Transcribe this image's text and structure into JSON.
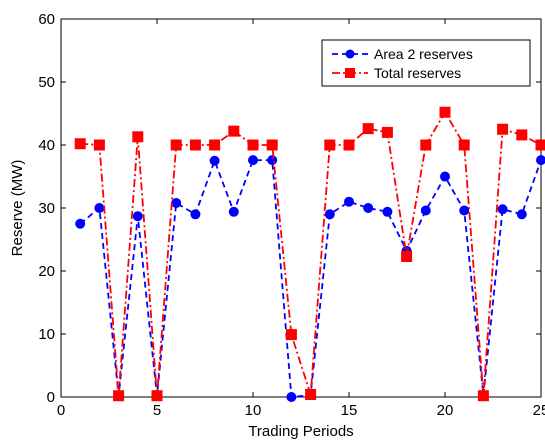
{
  "chart_data": {
    "type": "line",
    "title": "",
    "xlabel": "Trading Periods",
    "ylabel": "Reserve (MW)",
    "xlim": [
      0,
      25
    ],
    "ylim": [
      0,
      60
    ],
    "x_ticks": [
      0,
      5,
      10,
      15,
      20,
      25
    ],
    "y_ticks": [
      0,
      10,
      20,
      30,
      40,
      50,
      60
    ],
    "grid": false,
    "legend_position": "top-right",
    "x": [
      1,
      2,
      3,
      4,
      5,
      6,
      7,
      8,
      9,
      10,
      11,
      12,
      13,
      14,
      15,
      16,
      17,
      18,
      19,
      20,
      21,
      22,
      23,
      24,
      25
    ],
    "series": [
      {
        "name": "Area 2 reserves",
        "color": "#0000ff",
        "marker": "circle",
        "line_style": "dashed",
        "values": [
          27.5,
          30.0,
          0.2,
          28.7,
          0.2,
          30.8,
          29.0,
          37.5,
          29.4,
          37.6,
          37.6,
          0.0,
          0.3,
          29.0,
          31.0,
          30.0,
          29.4,
          23.2,
          29.6,
          35.0,
          29.6,
          0.3,
          29.8,
          29.0,
          37.6
        ]
      },
      {
        "name": "Total reserves",
        "color": "#ff0000",
        "marker": "square",
        "line_style": "dashdot",
        "values": [
          40.2,
          40.0,
          0.2,
          41.3,
          0.2,
          40.0,
          40.0,
          40.0,
          42.2,
          40.0,
          40.0,
          9.9,
          0.4,
          40.0,
          40.0,
          42.6,
          42.0,
          22.3,
          40.0,
          45.2,
          40.0,
          0.2,
          42.5,
          41.6,
          40.0
        ]
      }
    ]
  }
}
